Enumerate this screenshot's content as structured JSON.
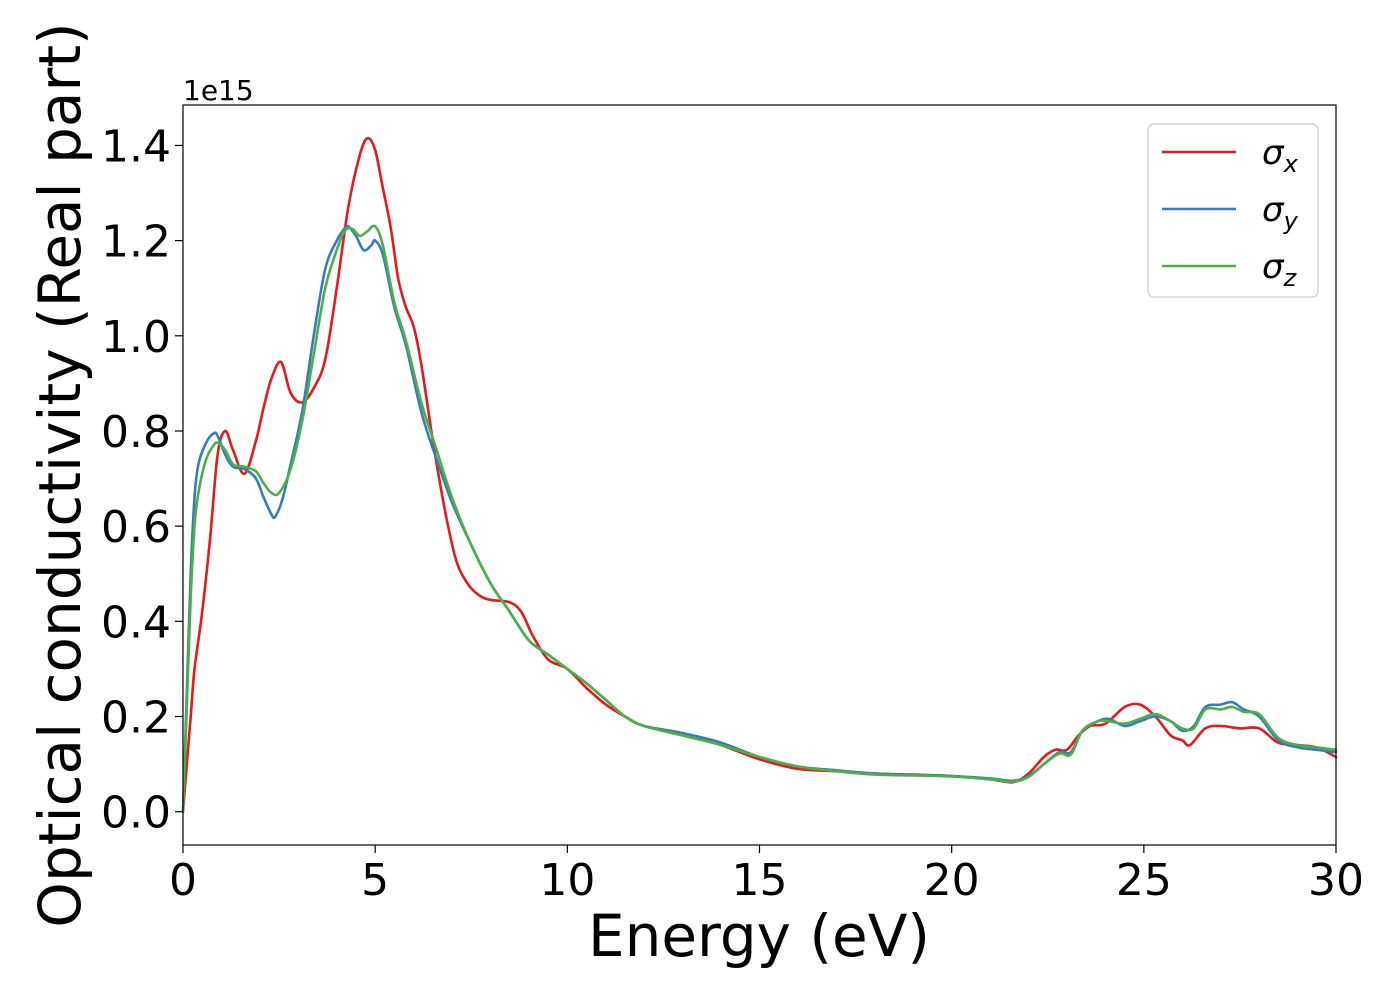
{
  "chart_data": {
    "type": "line",
    "title": "",
    "xlabel": "Energy (eV)",
    "ylabel": "Optical conductivity (Real part)",
    "y_offset_label": "1e15",
    "xlim": [
      0,
      30
    ],
    "ylim": [
      -0.07,
      1.485
    ],
    "xticks": [
      0,
      5,
      10,
      15,
      20,
      25,
      30
    ],
    "xtick_labels": [
      "0",
      "5",
      "10",
      "15",
      "20",
      "25",
      "30"
    ],
    "yticks": [
      0.0,
      0.2,
      0.4,
      0.6,
      0.8,
      1.0,
      1.2,
      1.4
    ],
    "ytick_labels": [
      "0.0",
      "0.2",
      "0.4",
      "0.6",
      "0.8",
      "1.0",
      "1.2",
      "1.4"
    ],
    "grid": false,
    "legend_position": "top-right",
    "series": [
      {
        "name": "σx",
        "legend_symbol": "σ",
        "legend_subscript": "x",
        "color": "#e41a1c",
        "x": [
          0,
          0.1,
          0.2,
          0.3,
          0.5,
          0.7,
          0.9,
          1.1,
          1.3,
          1.6,
          1.9,
          2.1,
          2.3,
          2.55,
          2.8,
          3.1,
          3.4,
          3.7,
          4.0,
          4.3,
          4.6,
          4.8,
          5.0,
          5.2,
          5.4,
          5.6,
          5.8,
          6.0,
          6.2,
          6.5,
          6.8,
          7.1,
          7.4,
          7.7,
          8.0,
          8.5,
          8.8,
          9.1,
          9.5,
          10.0,
          10.5,
          11.0,
          11.5,
          12.0,
          13.0,
          14.0,
          15.0,
          16.0,
          17.0,
          18.0,
          19.0,
          20.0,
          21.0,
          21.6,
          22.0,
          22.4,
          22.7,
          23.0,
          23.3,
          23.6,
          24.0,
          24.5,
          24.9,
          25.3,
          25.7,
          26.0,
          26.2,
          26.6,
          27.0,
          27.5,
          28.0,
          28.5,
          29.0,
          29.5,
          30.0
        ],
        "y": [
          0.0,
          0.1,
          0.2,
          0.3,
          0.42,
          0.57,
          0.75,
          0.8,
          0.76,
          0.71,
          0.78,
          0.85,
          0.91,
          0.945,
          0.88,
          0.86,
          0.89,
          0.95,
          1.1,
          1.27,
          1.38,
          1.415,
          1.39,
          1.31,
          1.23,
          1.12,
          1.06,
          1.02,
          0.94,
          0.78,
          0.64,
          0.53,
          0.48,
          0.455,
          0.445,
          0.44,
          0.42,
          0.37,
          0.32,
          0.3,
          0.26,
          0.225,
          0.2,
          0.18,
          0.165,
          0.14,
          0.11,
          0.09,
          0.085,
          0.08,
          0.078,
          0.075,
          0.068,
          0.062,
          0.08,
          0.115,
          0.13,
          0.13,
          0.16,
          0.18,
          0.185,
          0.22,
          0.225,
          0.2,
          0.16,
          0.15,
          0.14,
          0.175,
          0.18,
          0.175,
          0.175,
          0.145,
          0.14,
          0.135,
          0.115
        ]
      },
      {
        "name": "σy",
        "legend_symbol": "σ",
        "legend_subscript": "y",
        "color": "#377eb8",
        "x": [
          0,
          0.1,
          0.2,
          0.3,
          0.4,
          0.6,
          0.8,
          0.9,
          1.1,
          1.3,
          1.6,
          1.9,
          2.1,
          2.3,
          2.4,
          2.6,
          2.8,
          3.1,
          3.4,
          3.7,
          4.0,
          4.2,
          4.3,
          4.5,
          4.7,
          4.9,
          5.0,
          5.2,
          5.5,
          5.8,
          6.2,
          6.6,
          7.0,
          7.5,
          8.0,
          8.5,
          9.0,
          9.5,
          10.0,
          10.5,
          11.0,
          11.5,
          12.0,
          13.0,
          14.0,
          15.0,
          16.0,
          17.0,
          18.0,
          19.0,
          20.0,
          21.0,
          21.6,
          22.0,
          22.4,
          22.8,
          23.1,
          23.4,
          23.8,
          24.1,
          24.5,
          24.9,
          25.3,
          25.7,
          26.0,
          26.3,
          26.6,
          27.0,
          27.3,
          27.6,
          28.0,
          28.5,
          29.0,
          29.5,
          30.0
        ],
        "y": [
          0.0,
          0.25,
          0.5,
          0.66,
          0.73,
          0.775,
          0.795,
          0.79,
          0.75,
          0.725,
          0.72,
          0.7,
          0.66,
          0.625,
          0.62,
          0.66,
          0.73,
          0.84,
          1.0,
          1.14,
          1.2,
          1.225,
          1.23,
          1.21,
          1.18,
          1.19,
          1.2,
          1.17,
          1.06,
          0.98,
          0.84,
          0.74,
          0.65,
          0.56,
          0.48,
          0.42,
          0.36,
          0.33,
          0.3,
          0.27,
          0.235,
          0.2,
          0.18,
          0.165,
          0.145,
          0.115,
          0.095,
          0.087,
          0.08,
          0.077,
          0.075,
          0.07,
          0.065,
          0.075,
          0.1,
          0.125,
          0.125,
          0.17,
          0.19,
          0.195,
          0.18,
          0.19,
          0.2,
          0.19,
          0.17,
          0.18,
          0.22,
          0.225,
          0.23,
          0.215,
          0.2,
          0.15,
          0.135,
          0.13,
          0.125
        ]
      },
      {
        "name": "σz",
        "legend_symbol": "σ",
        "legend_subscript": "z",
        "color": "#4daf4a",
        "x": [
          0,
          0.1,
          0.2,
          0.3,
          0.4,
          0.6,
          0.8,
          0.9,
          1.1,
          1.3,
          1.6,
          1.9,
          2.1,
          2.3,
          2.5,
          2.8,
          3.1,
          3.4,
          3.7,
          4.0,
          4.2,
          4.4,
          4.6,
          4.8,
          5.0,
          5.2,
          5.5,
          5.8,
          6.2,
          6.6,
          7.0,
          7.5,
          8.0,
          8.5,
          9.0,
          9.5,
          10.0,
          10.5,
          11.0,
          11.5,
          12.0,
          13.0,
          14.0,
          15.0,
          16.0,
          17.0,
          18.0,
          19.0,
          20.0,
          21.0,
          21.6,
          22.0,
          22.4,
          22.8,
          23.1,
          23.4,
          23.8,
          24.1,
          24.5,
          24.9,
          25.3,
          25.7,
          26.0,
          26.3,
          26.6,
          27.0,
          27.3,
          27.6,
          28.0,
          28.5,
          29.0,
          29.5,
          30.0
        ],
        "y": [
          0.0,
          0.22,
          0.45,
          0.6,
          0.67,
          0.74,
          0.77,
          0.775,
          0.76,
          0.73,
          0.725,
          0.715,
          0.69,
          0.67,
          0.67,
          0.72,
          0.82,
          0.96,
          1.1,
          1.18,
          1.22,
          1.225,
          1.21,
          1.22,
          1.23,
          1.19,
          1.07,
          0.99,
          0.86,
          0.76,
          0.66,
          0.56,
          0.48,
          0.42,
          0.36,
          0.33,
          0.3,
          0.27,
          0.235,
          0.2,
          0.18,
          0.16,
          0.14,
          0.115,
          0.095,
          0.085,
          0.078,
          0.076,
          0.074,
          0.068,
          0.063,
          0.073,
          0.1,
          0.122,
          0.12,
          0.17,
          0.19,
          0.19,
          0.185,
          0.195,
          0.205,
          0.19,
          0.175,
          0.175,
          0.215,
          0.215,
          0.22,
          0.21,
          0.205,
          0.155,
          0.14,
          0.135,
          0.13
        ]
      }
    ]
  }
}
